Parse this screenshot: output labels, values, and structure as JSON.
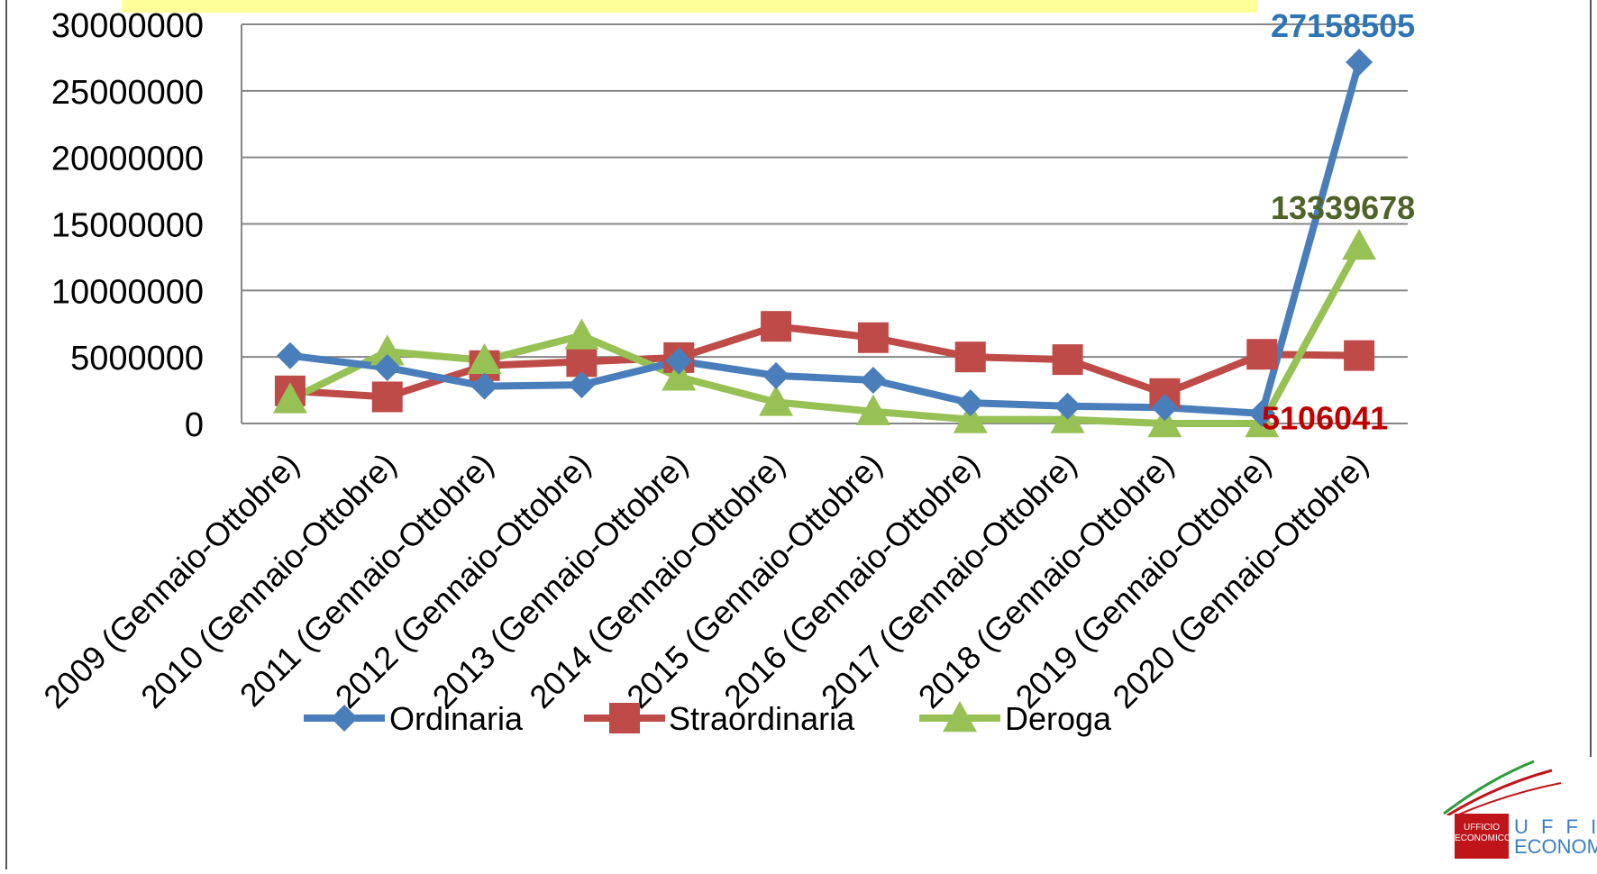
{
  "chart_data": {
    "type": "line",
    "categories": [
      "2009 (Gennaio-Ottobre)",
      "2010 (Gennaio-Ottobre)",
      "2011 (Gennaio-Ottobre)",
      "2012 (Gennaio-Ottobre)",
      "2013 (Gennaio-Ottobre)",
      "2014 (Gennaio-Ottobre)",
      "2015 (Gennaio-Ottobre)",
      "2016 (Gennaio-Ottobre)",
      "2017 (Gennaio-Ottobre)",
      "2018 (Gennaio-Ottobre)",
      "2019 (Gennaio-Ottobre)",
      "2020 (Gennaio-Ottobre)"
    ],
    "series": [
      {
        "name": "Ordinaria",
        "color": "#4a7ebb",
        "marker": "diamond",
        "values": [
          5100000,
          4200000,
          2800000,
          2900000,
          4700000,
          3600000,
          3250000,
          1550000,
          1300000,
          1200000,
          750000,
          27158505
        ],
        "end_label": "27158505",
        "label_color": "#2e75b6"
      },
      {
        "name": "Straordinaria",
        "color": "#be4b48",
        "marker": "square",
        "values": [
          2450000,
          2000000,
          4350000,
          4650000,
          4950000,
          7300000,
          6450000,
          5000000,
          4800000,
          2250000,
          5200000,
          5106041
        ],
        "end_label": "5106041",
        "label_color": "#c00000"
      },
      {
        "name": "Deroga",
        "color": "#98c155",
        "marker": "triangle",
        "values": [
          1800000,
          5400000,
          4750000,
          6600000,
          3500000,
          1600000,
          900000,
          300000,
          300000,
          0,
          0,
          13339678
        ],
        "end_label": "13339678",
        "label_color": "#4f6228"
      }
    ],
    "y_ticks": [
      "0",
      "5000000",
      "10000000",
      "15000000",
      "20000000",
      "25000000",
      "30000000"
    ],
    "ylim": [
      0,
      30000000
    ],
    "grid": true,
    "legend_position": "bottom"
  },
  "logo": {
    "box_text_1": "UFFICIO",
    "box_text_2": "ECONOMICO",
    "side_text_1": "U F F I C",
    "side_text_2": "ECONOM"
  }
}
